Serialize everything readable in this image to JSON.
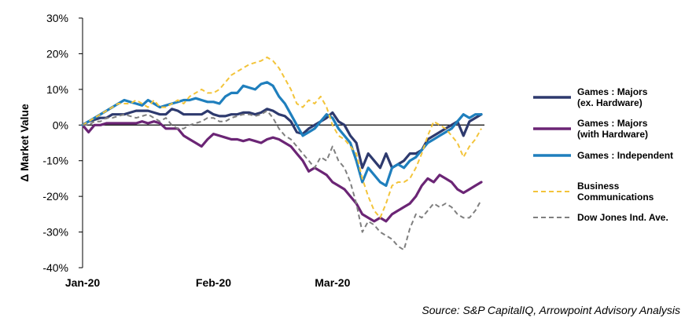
{
  "chart_data": {
    "type": "line",
    "title": "",
    "xlabel": "",
    "ylabel": "Δ Market Value",
    "ylim": [
      -40,
      30
    ],
    "yticks": [
      "30%",
      "20%",
      "10%",
      "0%",
      "-10%",
      "-20%",
      "-30%",
      "-40%"
    ],
    "ytick_values": [
      30,
      20,
      10,
      0,
      -10,
      -20,
      -30,
      -40
    ],
    "x_ticks": [
      {
        "label": "Jan-20",
        "index": 0
      },
      {
        "label": "Feb-20",
        "index": 22
      },
      {
        "label": "Mar-20",
        "index": 42
      }
    ],
    "grid": false,
    "legend_position": "right",
    "source": "Source: S&P CapitalIQ, Arrowpoint Advisory Analysis",
    "series": [
      {
        "name": "Games : Majors\n(ex. Hardware)",
        "label_lines": [
          "Games : Majors",
          "(ex. Hardware)"
        ],
        "color": "#2e3a6e",
        "dash": false,
        "values": [
          0,
          1,
          1.5,
          2,
          2,
          3,
          3,
          3,
          3.5,
          4,
          4,
          4,
          3.5,
          3,
          3,
          4.5,
          4,
          3,
          3,
          3,
          3,
          4,
          3,
          2.5,
          2.5,
          3,
          3,
          3.5,
          3.5,
          3,
          3.5,
          4.5,
          4,
          3,
          2.5,
          1,
          -2,
          -2.5,
          -1,
          0,
          1,
          2,
          3.5,
          1,
          0,
          -3,
          -5,
          -12,
          -8,
          -10,
          -12,
          -8,
          -12,
          -11,
          -10,
          -8,
          -8,
          -7,
          -4,
          -3,
          -2,
          -1,
          0,
          1,
          -3,
          1,
          2,
          3
        ]
      },
      {
        "name": "Games : Majors\n(with Hardware)",
        "label_lines": [
          "Games : Majors",
          "(with Hardware)"
        ],
        "color": "#6b2575",
        "dash": false,
        "values": [
          0,
          -2,
          0,
          0,
          0.5,
          0.5,
          0.5,
          0.5,
          0.5,
          0.5,
          1,
          0.5,
          1,
          0.5,
          -1,
          -1,
          -1,
          -3,
          -4,
          -5,
          -6,
          -4,
          -2.5,
          -3,
          -3.5,
          -4,
          -4,
          -4.5,
          -4,
          -4.5,
          -5,
          -4,
          -3.5,
          -4,
          -5,
          -6,
          -8,
          -10,
          -13,
          -12,
          -13,
          -14,
          -16,
          -17,
          -18,
          -20,
          -22,
          -25,
          -26,
          -27,
          -26,
          -27,
          -25,
          -24,
          -23,
          -22,
          -20,
          -17,
          -15,
          -16,
          -14,
          -15,
          -16,
          -18,
          -19,
          -18,
          -17,
          -16
        ]
      },
      {
        "name": "Games : Independent",
        "label_lines": [
          "Games : Independent"
        ],
        "color": "#1f7fbd",
        "dash": false,
        "values": [
          0,
          1,
          2,
          3,
          4,
          5,
          6,
          7,
          6.5,
          6,
          5.5,
          7,
          6,
          5,
          5.5,
          6,
          6.5,
          7,
          7,
          7.5,
          7,
          6.5,
          6.5,
          6,
          8,
          9,
          9,
          11,
          10.5,
          10,
          11.5,
          12,
          11,
          8,
          6,
          3,
          0,
          -3,
          -2,
          -1,
          1,
          3,
          2,
          -1,
          -3,
          -5,
          -10,
          -16,
          -12,
          -14,
          -16,
          -17,
          -12,
          -11,
          -12,
          -10,
          -9,
          -7,
          -5,
          -4,
          -3,
          -2,
          -1,
          1,
          3,
          2,
          3,
          3
        ]
      },
      {
        "name": "Business\nCommunications",
        "label_lines": [
          "Business",
          "Communications"
        ],
        "color": "#f3c43a",
        "dash": true,
        "values": [
          0,
          1,
          2,
          3,
          4,
          5,
          6,
          6,
          6,
          7,
          6,
          5,
          7,
          5,
          5,
          6,
          7,
          6,
          8,
          9,
          10,
          9,
          9,
          10,
          12,
          14,
          15,
          16,
          17,
          17.5,
          18,
          19,
          18,
          16,
          13,
          10,
          6,
          5,
          7,
          6,
          8,
          5,
          0,
          -3,
          -4,
          -6,
          -8,
          -15,
          -20,
          -24,
          -26,
          -22,
          -17,
          -16,
          -16,
          -15,
          -12,
          -8,
          -3,
          1,
          0,
          -1,
          -3,
          -5,
          -9,
          -6,
          -4,
          -1
        ]
      },
      {
        "name": "Dow Jones Ind. Ave.",
        "label_lines": [
          "Dow Jones Ind. Ave."
        ],
        "color": "#7f7f7f",
        "dash": true,
        "values": [
          0,
          0,
          1,
          1,
          2,
          2,
          2.5,
          3,
          2.5,
          2,
          2.5,
          3,
          2,
          1,
          2,
          0,
          -1,
          -1,
          0,
          0.5,
          1,
          2,
          2,
          1,
          1,
          2,
          2.5,
          3,
          3,
          2.5,
          3,
          4,
          2,
          -1,
          -3,
          -4,
          -6,
          -8,
          -10,
          -12,
          -9,
          -10,
          -6,
          -10,
          -12,
          -16,
          -22,
          -30,
          -27,
          -28,
          -30,
          -31,
          -32,
          -34,
          -35,
          -29,
          -25,
          -26,
          -24,
          -22,
          -23,
          -22,
          -23,
          -25,
          -26,
          -26,
          -24,
          -21
        ]
      }
    ]
  }
}
